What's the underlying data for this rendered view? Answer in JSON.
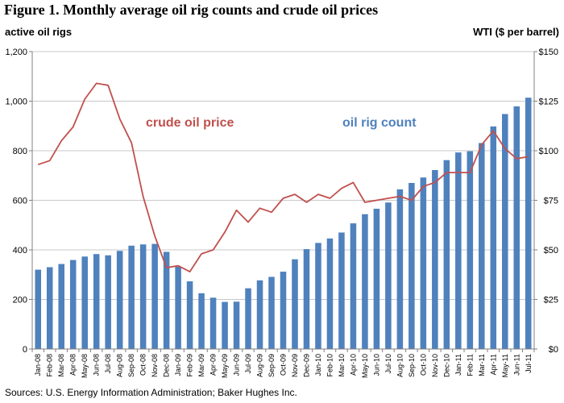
{
  "figure_title": "Figure 1.  Monthly average oil rig counts and crude oil prices",
  "source_note": "Sources:  U.S. Energy Information Administration; Baker Hughes Inc.",
  "chart_data": {
    "type": "bar",
    "title": "Figure 1.  Monthly average oil rig counts and crude oil prices",
    "categories": [
      "Jan-08",
      "Feb-08",
      "Mar-08",
      "Apr-08",
      "May-08",
      "Jun-08",
      "Jul-08",
      "Aug-08",
      "Sep-08",
      "Oct-08",
      "Nov-08",
      "Dec-08",
      "Jan-09",
      "Feb-09",
      "Mar-09",
      "Apr-09",
      "May-09",
      "Jun-09",
      "Jul-09",
      "Aug-09",
      "Sep-09",
      "Oct-09",
      "Nov-09",
      "Dec-09",
      "Jan-10",
      "Feb-10",
      "Mar-10",
      "Apr-10",
      "May-10",
      "Jun-10",
      "Jul-10",
      "Aug-10",
      "Sep-10",
      "Oct-10",
      "Nov-10",
      "Dec-10",
      "Jan-11",
      "Feb-11",
      "Mar-11",
      "Apr-11",
      "May-11",
      "Jun-11",
      "Jul-11"
    ],
    "left_axis": {
      "label": "active oil rigs",
      "ylim": [
        0,
        1200
      ],
      "ticks": [
        0,
        200,
        400,
        600,
        800,
        1000,
        1200
      ],
      "tick_labels": [
        "0",
        "200",
        "400",
        "600",
        "800",
        "1,000",
        "1,200"
      ]
    },
    "right_axis": {
      "label": "WTI ($ per barrel)",
      "ylim": [
        0,
        150
      ],
      "ticks": [
        0,
        25,
        50,
        75,
        100,
        125,
        150
      ],
      "tick_labels": [
        "$0",
        "$25",
        "$50",
        "$75",
        "$100",
        "$125",
        "$150"
      ]
    },
    "series": [
      {
        "name": "oil rig count",
        "kind": "bar",
        "axis": "left",
        "color": "#4f81bd",
        "values": [
          320,
          330,
          343,
          359,
          373,
          383,
          378,
          396,
          417,
          422,
          424,
          392,
          332,
          273,
          225,
          207,
          190,
          191,
          245,
          277,
          291,
          312,
          362,
          403,
          428,
          446,
          470,
          507,
          544,
          566,
          591,
          644,
          670,
          692,
          722,
          762,
          793,
          798,
          831,
          898,
          948,
          979,
          1014
        ]
      },
      {
        "name": "crude oil price",
        "kind": "line",
        "axis": "right",
        "color": "#c0504d",
        "values": [
          93,
          95,
          105,
          112,
          126,
          134,
          133,
          116,
          104,
          77,
          57,
          41,
          42,
          39,
          48,
          50,
          59,
          70,
          64,
          71,
          69,
          76,
          78,
          74,
          78,
          76,
          81,
          84,
          74,
          75,
          76,
          77,
          75,
          82,
          84,
          89,
          89,
          89,
          103,
          110,
          101,
          96,
          97
        ]
      }
    ],
    "annotations": [
      {
        "text": "crude oil price",
        "color": "#c0504d"
      },
      {
        "text": "oil rig count",
        "color": "#4f81bd"
      }
    ],
    "grid": true,
    "xlabel": ""
  }
}
